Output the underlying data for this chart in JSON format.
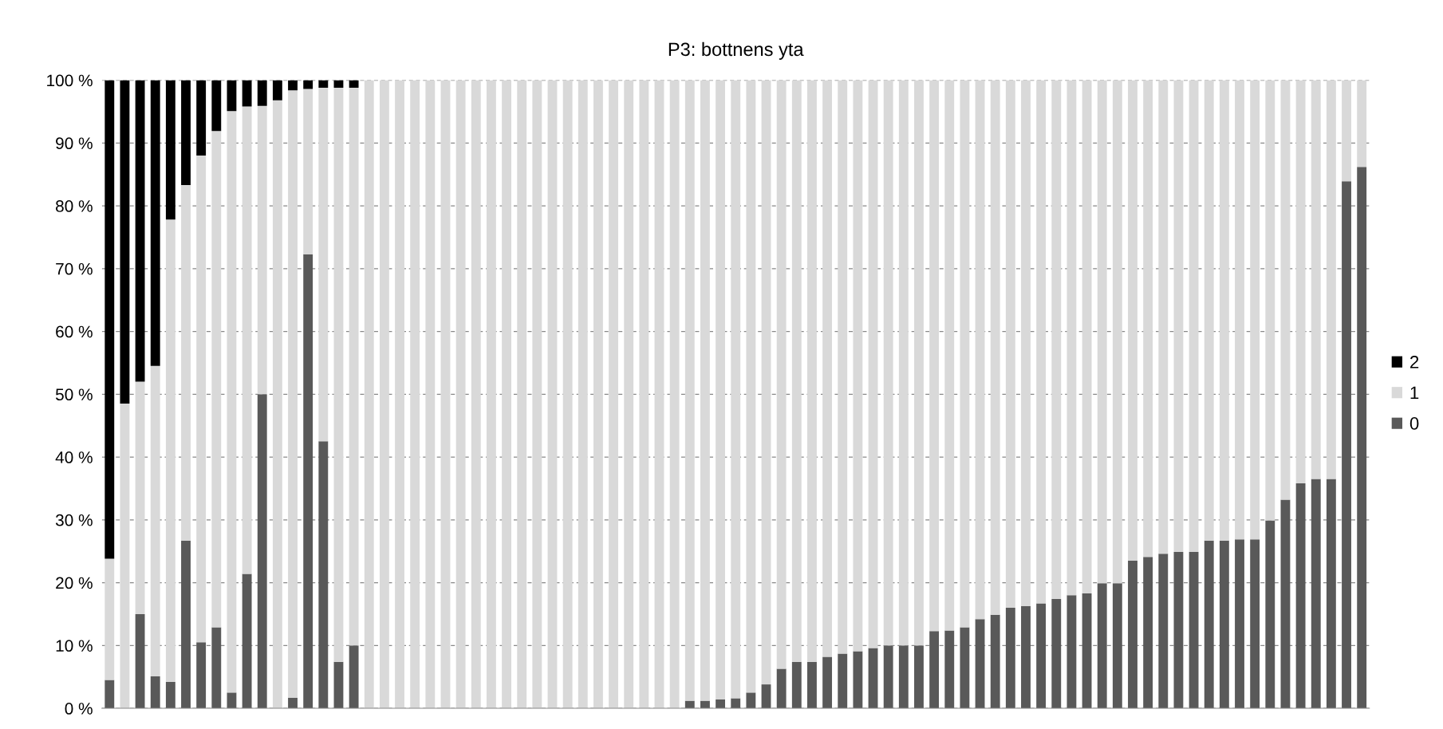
{
  "chart_data": {
    "type": "bar",
    "title": "P3: bottnens yta",
    "stacked": true,
    "categories": [
      null,
      null,
      null,
      null,
      null,
      null,
      null,
      null,
      null,
      null,
      null,
      null,
      null,
      null,
      null,
      null,
      null,
      null,
      null,
      null,
      null,
      null,
      null,
      null,
      null,
      null,
      null,
      null,
      null,
      null,
      null,
      null,
      null,
      null,
      null,
      null,
      null,
      null,
      null,
      null,
      null,
      null,
      null,
      null,
      null,
      null,
      null,
      null,
      null,
      null,
      null,
      null,
      null,
      null,
      null,
      null,
      null,
      null,
      null,
      null,
      null,
      null,
      null,
      null,
      null,
      null,
      null,
      null,
      null,
      null,
      null,
      null,
      null,
      null,
      null,
      null,
      null,
      null,
      null,
      null,
      null,
      null,
      null
    ],
    "series": [
      {
        "name": "0",
        "color": "#595959",
        "values": [
          4.5,
          0,
          15,
          5.1,
          4.2,
          26.7,
          10.5,
          12.9,
          2.5,
          21.4,
          50,
          0,
          1.7,
          72.3,
          42.5,
          7.4,
          10,
          0,
          0,
          0,
          0,
          0,
          0,
          0,
          0,
          0,
          0,
          0,
          0,
          0,
          0,
          0,
          0,
          0,
          0,
          0,
          0,
          0,
          1.2,
          1.2,
          1.4,
          1.6,
          2.5,
          3.8,
          6.3,
          7.4,
          7.4,
          8.2,
          8.7,
          9.1,
          9.6,
          10,
          10,
          10,
          12.3,
          12.4,
          12.9,
          14.2,
          14.9,
          16.0,
          16.3,
          16.7,
          17.4,
          18.0,
          18.3,
          19.9,
          19.9,
          23.5,
          24.1,
          24.6,
          24.9,
          24.9,
          26.7,
          26.7,
          26.9,
          26.9,
          29.9,
          33.2,
          35.8,
          36.5,
          36.5,
          83.9,
          86.2
        ]
      },
      {
        "name": "1",
        "color": "#d9d9d9",
        "values": [
          19.3,
          48.5,
          37.0,
          49.4,
          73.6,
          56.6,
          77.5,
          79.0,
          92.6,
          74.4,
          45.9,
          96.8,
          96.7,
          26.3,
          56.3,
          91.4,
          88.8,
          100,
          100,
          100,
          100,
          100,
          100,
          100,
          100,
          100,
          100,
          100,
          100,
          100,
          100,
          100,
          100,
          100,
          100,
          100,
          100,
          100,
          98.8,
          98.8,
          98.6,
          98.4,
          97.5,
          96.2,
          93.7,
          92.6,
          92.6,
          91.8,
          91.3,
          90.9,
          90.4,
          90,
          90,
          90,
          87.7,
          87.6,
          87.1,
          85.8,
          85.1,
          84.0,
          83.7,
          83.3,
          82.6,
          82.0,
          81.7,
          80.1,
          80.1,
          76.5,
          75.9,
          75.4,
          75.1,
          75.1,
          73.3,
          73.3,
          73.1,
          73.1,
          70.1,
          66.8,
          64.2,
          63.5,
          63.5,
          16.1,
          13.8
        ]
      },
      {
        "name": "2",
        "color": "#000000",
        "values": [
          76.2,
          51.5,
          48.0,
          45.5,
          22.2,
          16.7,
          12.0,
          8.1,
          4.9,
          4.2,
          4.1,
          3.2,
          1.6,
          1.4,
          1.2,
          1.2,
          1.2,
          0,
          0,
          0,
          0,
          0,
          0,
          0,
          0,
          0,
          0,
          0,
          0,
          0,
          0,
          0,
          0,
          0,
          0,
          0,
          0,
          0,
          0,
          0,
          0,
          0,
          0,
          0,
          0,
          0,
          0,
          0,
          0,
          0,
          0,
          0,
          0,
          0,
          0,
          0,
          0,
          0,
          0,
          0,
          0,
          0,
          0,
          0,
          0,
          0,
          0,
          0,
          0,
          0,
          0,
          0,
          0,
          0,
          0,
          0,
          0,
          0,
          0,
          0,
          0,
          0,
          0
        ]
      }
    ],
    "ylim": [
      0,
      100
    ],
    "yticks": [
      {
        "value": 0,
        "label": "0 %"
      },
      {
        "value": 10,
        "label": "10 %"
      },
      {
        "value": 20,
        "label": "20 %"
      },
      {
        "value": 30,
        "label": "30 %"
      },
      {
        "value": 40,
        "label": "40 %"
      },
      {
        "value": 50,
        "label": "50 %"
      },
      {
        "value": 60,
        "label": "60 %"
      },
      {
        "value": 70,
        "label": "70 %"
      },
      {
        "value": 80,
        "label": "80 %"
      },
      {
        "value": 90,
        "label": "90 %"
      },
      {
        "value": 100,
        "label": "100 %"
      }
    ],
    "grid": "y",
    "legend": "right"
  }
}
